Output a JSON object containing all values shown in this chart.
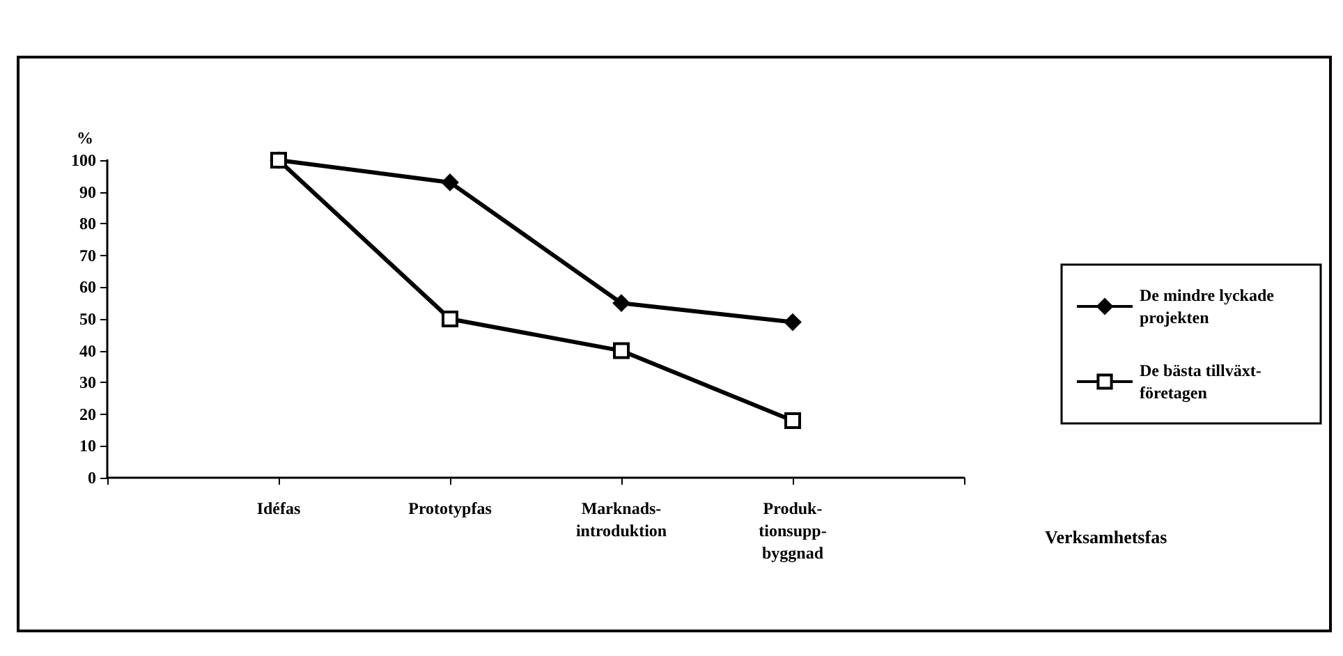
{
  "chart_data": {
    "type": "line",
    "xlabel": "Verksamhetsfas",
    "ylabel": "%",
    "categories": [
      null,
      "Idéfas",
      "Prototypfas",
      "Marknads-introduktion",
      "Produk-tionsupp-byggnad",
      null
    ],
    "series": [
      {
        "name": "De mindre lyckade projekten",
        "color": "#000000",
        "marker": "diamond",
        "values": [
          null,
          100,
          93,
          55,
          49,
          null
        ]
      },
      {
        "name": "De bästa tillväxt-företagen",
        "color": "#000000",
        "marker": "square",
        "values": [
          null,
          100,
          50,
          40,
          18,
          null
        ]
      }
    ],
    "ylim": [
      0,
      100
    ],
    "yticks": [
      0,
      10,
      20,
      30,
      40,
      50,
      60,
      70,
      80,
      90,
      100
    ],
    "grid": false,
    "legend": "right",
    "line_style": "solid"
  }
}
